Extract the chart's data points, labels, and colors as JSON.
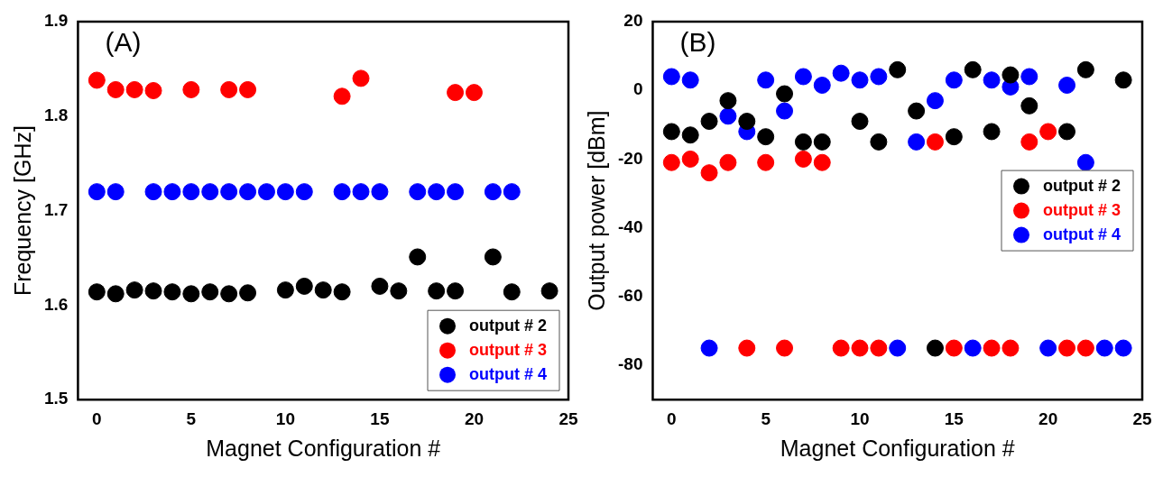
{
  "chart_data": [
    {
      "type": "scatter",
      "xlabel": "Magnet Configuration #",
      "ylabel": "Frequency [GHz]",
      "annotations": [
        "(A)"
      ],
      "xlim": [
        -1,
        25
      ],
      "xticks": [
        0,
        5,
        10,
        15,
        20,
        25
      ],
      "ylim": [
        1.5,
        1.9
      ],
      "yticks": [
        1.5,
        1.6,
        1.7,
        1.8,
        1.9
      ],
      "grid": false,
      "legend": "bottom right",
      "marker": "circle",
      "series": [
        {
          "name": "output # 2",
          "color": "#000000",
          "x": [
            0,
            1,
            2,
            3,
            4,
            5,
            6,
            7,
            8,
            10,
            11,
            12,
            13,
            15,
            16,
            17,
            18,
            19,
            21,
            22,
            24
          ],
          "values": [
            1.614,
            1.612,
            1.616,
            1.615,
            1.614,
            1.612,
            1.614,
            1.612,
            1.613,
            1.616,
            1.62,
            1.616,
            1.614,
            1.62,
            1.615,
            1.651,
            1.615,
            1.615,
            1.651,
            1.614,
            1.615
          ]
        },
        {
          "name": "output # 3",
          "color": "#ff0000",
          "x": [
            0,
            1,
            2,
            3,
            5,
            7,
            8,
            13,
            14,
            19,
            20
          ],
          "values": [
            1.838,
            1.828,
            1.828,
            1.827,
            1.828,
            1.828,
            1.828,
            1.821,
            1.84,
            1.825,
            1.825
          ]
        },
        {
          "name": "output # 4",
          "color": "#0000ff",
          "x": [
            0,
            1,
            3,
            4,
            5,
            6,
            7,
            8,
            9,
            10,
            11,
            13,
            14,
            15,
            17,
            18,
            19,
            21,
            22
          ],
          "values": [
            1.72,
            1.72,
            1.72,
            1.72,
            1.72,
            1.72,
            1.72,
            1.72,
            1.72,
            1.72,
            1.72,
            1.72,
            1.72,
            1.72,
            1.72,
            1.72,
            1.72,
            1.72,
            1.72
          ]
        }
      ]
    },
    {
      "type": "scatter",
      "xlabel": "Magnet Configuration #",
      "ylabel": "Output power [dBm]",
      "annotations": [
        "(B)"
      ],
      "xlim": [
        -1,
        25
      ],
      "xticks": [
        0,
        5,
        10,
        15,
        20,
        25
      ],
      "ylim": [
        -90,
        20
      ],
      "yticks": [
        -80,
        -60,
        -40,
        -20,
        0,
        20
      ],
      "grid": false,
      "legend": "right",
      "marker": "circle",
      "series": [
        {
          "name": "output # 2",
          "color": "#000000",
          "x": [
            0,
            1,
            2,
            3,
            4,
            5,
            6,
            7,
            8,
            10,
            11,
            12,
            13,
            14,
            15,
            16,
            17,
            18,
            19,
            21,
            22,
            24
          ],
          "values": [
            -12,
            -13,
            -9,
            -3,
            -9,
            -13.5,
            -1,
            -15,
            -15,
            -9,
            -15,
            6,
            -6,
            -75,
            -13.5,
            6,
            -12,
            4.5,
            -4.5,
            -12,
            6,
            3
          ]
        },
        {
          "name": "output # 3",
          "color": "#ff0000",
          "x": [
            0,
            1,
            2,
            3,
            4,
            5,
            6,
            7,
            8,
            9,
            10,
            11,
            14,
            15,
            17,
            18,
            19,
            20,
            21,
            22
          ],
          "values": [
            -21,
            -20,
            -24,
            -21,
            -75,
            -21,
            -75,
            -20,
            -21,
            -75,
            -75,
            -75,
            -15,
            -75,
            -75,
            -75,
            -15,
            -12,
            -75,
            -75
          ]
        },
        {
          "name": "output # 4",
          "color": "#0000ff",
          "x": [
            0,
            1,
            2,
            3,
            4,
            5,
            6,
            7,
            8,
            9,
            10,
            11,
            12,
            13,
            14,
            15,
            16,
            17,
            18,
            19,
            20,
            21,
            22,
            23,
            24
          ],
          "values": [
            4,
            3,
            -75,
            -7.5,
            -12,
            3,
            -6,
            4,
            1.5,
            5,
            3,
            4,
            -75,
            -15,
            -3,
            3,
            -75,
            3,
            1,
            4,
            -75,
            1.5,
            -21,
            -75,
            -75
          ]
        }
      ]
    }
  ]
}
